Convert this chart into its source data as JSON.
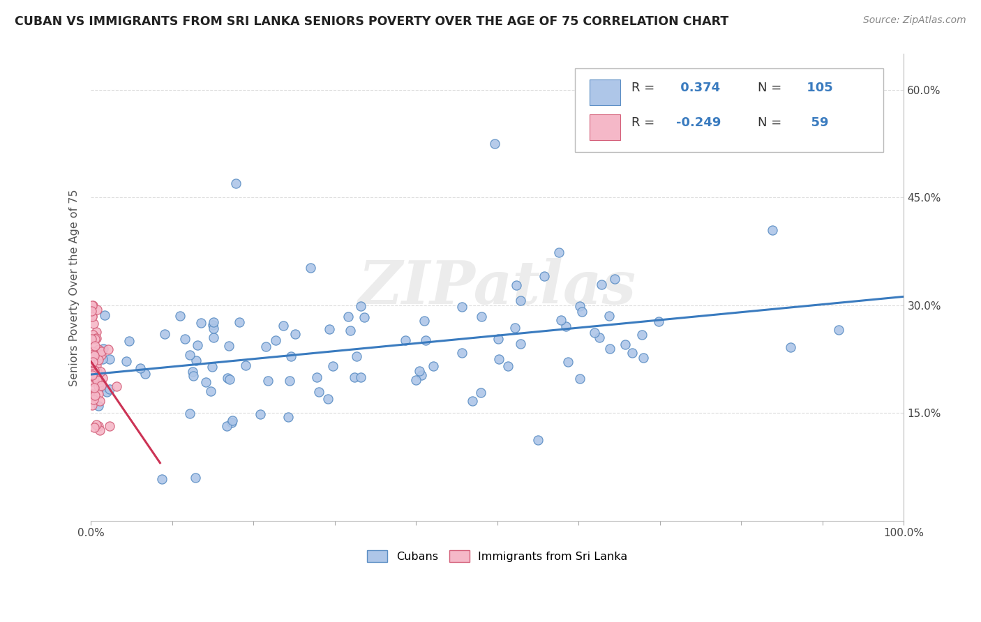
{
  "title": "CUBAN VS IMMIGRANTS FROM SRI LANKA SENIORS POVERTY OVER THE AGE OF 75 CORRELATION CHART",
  "source_text": "Source: ZipAtlas.com",
  "ylabel": "Seniors Poverty Over the Age of 75",
  "xlim": [
    0.0,
    1.0
  ],
  "ylim": [
    0.0,
    0.65
  ],
  "yticks": [
    0.15,
    0.3,
    0.45,
    0.6
  ],
  "ytick_labels": [
    "15.0%",
    "30.0%",
    "45.0%",
    "60.0%"
  ],
  "cuban_color": "#aec6e8",
  "cuban_edge_color": "#5b8ec4",
  "srilanka_color": "#f5b8c8",
  "srilanka_edge_color": "#d4607a",
  "trendline_cuban_color": "#3a7bbf",
  "trendline_srilanka_color": "#cc3355",
  "legend_R_cuban": "0.374",
  "legend_N_cuban": "105",
  "legend_R_srilanka": "-0.249",
  "legend_N_srilanka": "59",
  "legend_label1": "Cubans",
  "legend_label2": "Immigrants from Sri Lanka",
  "watermark": "ZIPatlas",
  "background_color": "#ffffff",
  "grid_color": "#cccccc",
  "text_color_blue": "#3a7bbf",
  "title_color": "#222222",
  "source_color": "#888888",
  "ylabel_color": "#555555"
}
